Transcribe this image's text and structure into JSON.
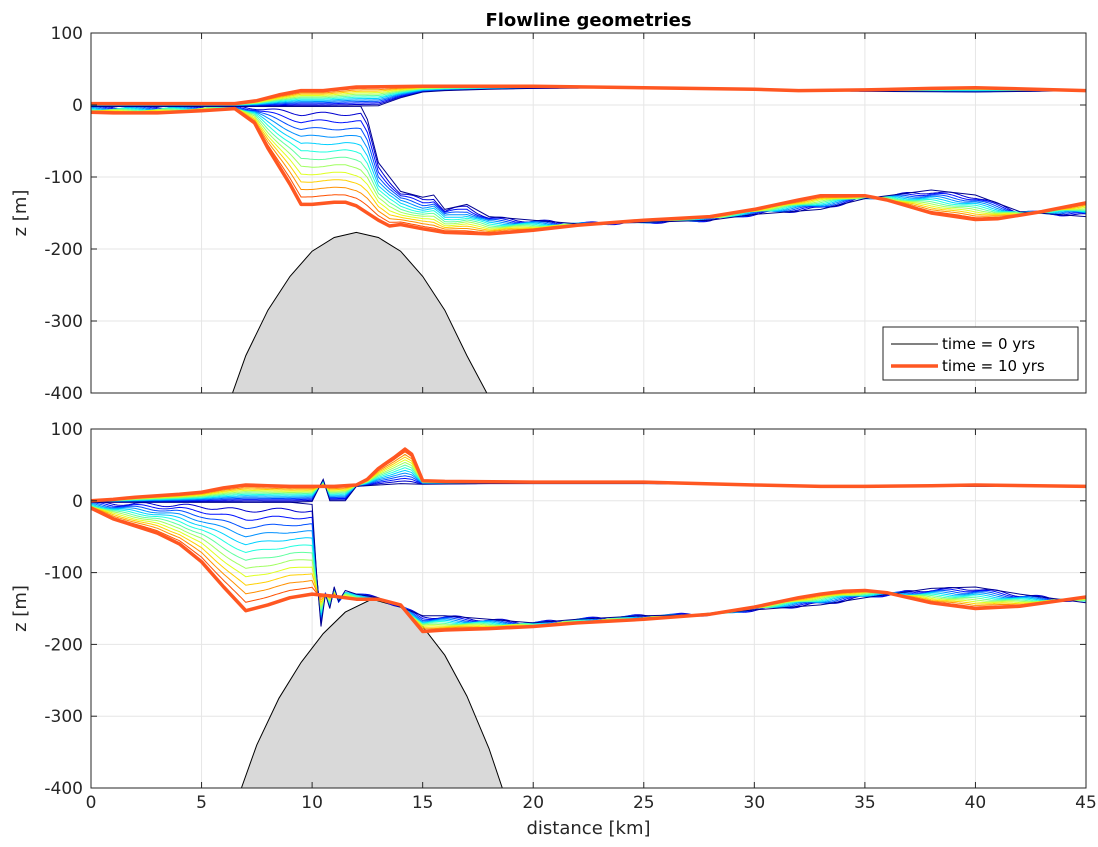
{
  "chart_data": [
    {
      "type": "line",
      "title": "Flowline geometries",
      "xlabel": "",
      "ylabel": "z [m]",
      "xlim": [
        0,
        45
      ],
      "ylim": [
        -400,
        100
      ],
      "xticks": [
        0,
        5,
        10,
        15,
        20,
        25,
        30,
        35,
        40,
        45
      ],
      "yticks": [
        -400,
        -300,
        -200,
        -100,
        0,
        100
      ],
      "show_xticklabels": false,
      "grid": true,
      "legend": {
        "position": "bottom-right",
        "entries": [
          "time = 0 yrs",
          "time = 10 yrs"
        ]
      },
      "bedrock": {
        "color": "#d9d9d9",
        "x": [
          6.4,
          7,
          8,
          9,
          10,
          11,
          12,
          13,
          14,
          15,
          16,
          17,
          17.9
        ],
        "y": [
          -400,
          -348,
          -285,
          -238,
          -203,
          -184,
          -177,
          -184,
          -203,
          -238,
          -285,
          -348,
          -400
        ]
      },
      "surface_initial": {
        "x": [
          0,
          10,
          13,
          14,
          15,
          16,
          18,
          20,
          25,
          30,
          35,
          40,
          45
        ],
        "y": [
          -2,
          -2,
          -1,
          10,
          18,
          20,
          22,
          23,
          24,
          21,
          19,
          18,
          20
        ]
      },
      "surface_final": {
        "x": [
          0,
          5,
          6.5,
          7.5,
          8.5,
          9.5,
          10.5,
          12,
          15,
          20,
          25,
          30,
          32,
          35,
          38,
          40,
          45
        ],
        "y": [
          2,
          2,
          2,
          6,
          14,
          20,
          20,
          25,
          26,
          26,
          24,
          22,
          20,
          21,
          23,
          24,
          20
        ]
      },
      "base_initial": {
        "x": [
          0,
          10,
          12.2,
          12.5,
          13,
          14,
          15,
          15.5,
          16,
          17,
          18,
          20,
          22,
          25,
          28,
          30,
          33,
          35,
          38,
          40,
          42,
          45
        ],
        "y": [
          -2,
          -2,
          -2,
          -20,
          -80,
          -120,
          -128,
          -125,
          -145,
          -138,
          -155,
          -160,
          -165,
          -163,
          -160,
          -152,
          -145,
          -130,
          -118,
          -125,
          -148,
          -155
        ]
      },
      "base_final": {
        "x": [
          0,
          1,
          3,
          5,
          6.5,
          7.4,
          8,
          9,
          9.5,
          10,
          11,
          11.5,
          12,
          13,
          13.5,
          14,
          15,
          16,
          18,
          20,
          22,
          25,
          28,
          30,
          32,
          33,
          35,
          36,
          38,
          40,
          41,
          43,
          45
        ],
        "y": [
          -10,
          -11,
          -11,
          -8,
          -5,
          -25,
          -60,
          -110,
          -138,
          -138,
          -135,
          -135,
          -140,
          -160,
          -168,
          -166,
          -172,
          -177,
          -179,
          -174,
          -167,
          -160,
          -155,
          -145,
          -132,
          -126,
          -126,
          -132,
          -150,
          -159,
          -158,
          -148,
          -136
        ]
      }
    },
    {
      "type": "line",
      "title": "",
      "xlabel": "distance [km]",
      "ylabel": "z [m]",
      "xlim": [
        0,
        45
      ],
      "ylim": [
        -400,
        100
      ],
      "xticks": [
        0,
        5,
        10,
        15,
        20,
        25,
        30,
        35,
        40,
        45
      ],
      "yticks": [
        -400,
        -300,
        -200,
        -100,
        0,
        100
      ],
      "show_xticklabels": true,
      "grid": true,
      "bedrock": {
        "color": "#d9d9d9",
        "x": [
          6.8,
          7.5,
          8.5,
          9.5,
          10.5,
          11.5,
          12.7,
          14,
          15,
          16,
          17,
          18,
          18.6
        ],
        "y": [
          -400,
          -340,
          -275,
          -225,
          -185,
          -155,
          -137,
          -148,
          -175,
          -215,
          -272,
          -345,
          -400
        ]
      },
      "surface_initial": {
        "x": [
          0,
          9,
          10,
          10.5,
          10.8,
          11,
          11.5,
          12,
          13,
          14,
          15,
          18,
          20,
          25,
          30,
          35,
          40,
          45
        ],
        "y": [
          -2,
          -2,
          -1,
          30,
          0,
          0,
          0,
          20,
          22,
          24,
          23,
          24,
          24,
          24,
          23,
          20,
          20,
          20
        ]
      },
      "surface_final": {
        "x": [
          0,
          1,
          2,
          4,
          5,
          6,
          7,
          8,
          9,
          10,
          11,
          12,
          12.5,
          13,
          13.7,
          14.2,
          14.5,
          15,
          16,
          20,
          25,
          30,
          33,
          35,
          38,
          40,
          45
        ],
        "y": [
          0,
          2,
          5,
          9,
          12,
          18,
          22,
          21,
          20,
          20,
          20,
          22,
          30,
          45,
          60,
          72,
          65,
          28,
          27,
          26,
          26,
          22,
          20,
          20,
          21,
          22,
          20
        ]
      },
      "base_initial": {
        "x": [
          0,
          9,
          10,
          10.2,
          10.4,
          10.6,
          10.8,
          11,
          11.2,
          11.5,
          12,
          13,
          14,
          15,
          16,
          18,
          20,
          22,
          25,
          28,
          30,
          33,
          35,
          38,
          40,
          42,
          45
        ],
        "y": [
          -2,
          -2,
          -5,
          -100,
          -175,
          -130,
          -150,
          -120,
          -140,
          -125,
          -130,
          -135,
          -148,
          -160,
          -160,
          -165,
          -170,
          -165,
          -160,
          -158,
          -152,
          -145,
          -135,
          -122,
          -120,
          -130,
          -142
        ]
      },
      "base_final": {
        "x": [
          0,
          1,
          2,
          3,
          4,
          5,
          6,
          7,
          8,
          9,
          10,
          11,
          12,
          13,
          14,
          15,
          16,
          18,
          20,
          22,
          25,
          28,
          30,
          32,
          33,
          34,
          35,
          36,
          38,
          40,
          42,
          45
        ],
        "y": [
          -10,
          -25,
          -35,
          -45,
          -60,
          -85,
          -120,
          -153,
          -145,
          -135,
          -130,
          -133,
          -137,
          -137,
          -145,
          -182,
          -180,
          -178,
          -175,
          -170,
          -165,
          -158,
          -148,
          -135,
          -130,
          -126,
          -125,
          -128,
          -142,
          -150,
          -147,
          -134
        ]
      }
    }
  ]
}
